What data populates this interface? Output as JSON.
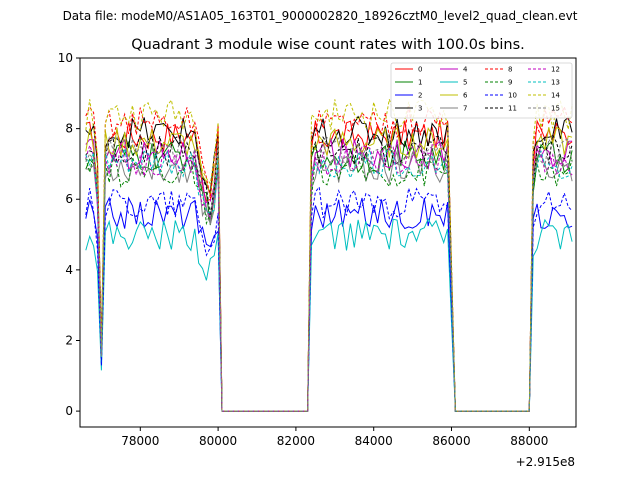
{
  "chart_data": {
    "type": "line",
    "suptitle": "Data file: modeM0/AS1A05_163T01_9000002820_18926cztM0_level2_quad_clean.evt",
    "title": "Quadrant 3 module wise count rates with 100.0s bins.",
    "xlabel": "",
    "ylabel": "",
    "x_offset_label": "+2.915e8",
    "xlim": [
      76450,
      89200
    ],
    "ylim": [
      -0.45,
      10
    ],
    "xticks": [
      78000,
      80000,
      82000,
      84000,
      86000,
      88000
    ],
    "xtick_labels": [
      "78000",
      "80000",
      "82000",
      "84000",
      "86000",
      "88000"
    ],
    "yticks": [
      0,
      2,
      4,
      6,
      8,
      10
    ],
    "ytick_labels": [
      "0",
      "2",
      "4",
      "6",
      "8",
      "10"
    ],
    "grid": false,
    "legend_position": "top-right",
    "bin_width": 100,
    "x_start": 76600,
    "x_end": 89100,
    "shape": {
      "on_segments": [
        [
          76600,
          79500
        ],
        [
          82400,
          86000
        ],
        [
          88100,
          89100
        ]
      ],
      "peaks": [
        [
          80150,
          1.03
        ]
      ],
      "ramps": [
        [
          79500,
          0.92
        ],
        [
          79600,
          0.86
        ],
        [
          79700,
          0.8
        ],
        [
          79800,
          0.78
        ],
        [
          79900,
          0.86
        ],
        [
          80000,
          0.98
        ]
      ],
      "dips": [
        [
          76900,
          0.84
        ],
        [
          77000,
          0.22
        ]
      ],
      "falls": [
        [
          80250,
          0.06
        ],
        [
          80350,
          0.0
        ]
      ],
      "rises": [
        [
          82350,
          0.62
        ],
        [
          82400,
          0.95
        ]
      ],
      "edge_dips": [
        [
          86000,
          0.5
        ],
        [
          86050,
          0.0
        ]
      ],
      "edge_rises": [
        [
          88050,
          0.5
        ],
        [
          88100,
          0.9
        ]
      ]
    },
    "series": [
      {
        "name": "0",
        "color": "#ff0000",
        "dash": "solid",
        "level": 7.8
      },
      {
        "name": "1",
        "color": "#008000",
        "dash": "solid",
        "level": 7.2
      },
      {
        "name": "2",
        "color": "#0000ff",
        "dash": "solid",
        "level": 5.6
      },
      {
        "name": "3",
        "color": "#000000",
        "dash": "solid",
        "level": 7.9
      },
      {
        "name": "4",
        "color": "#bf00bf",
        "dash": "solid",
        "level": 7.3
      },
      {
        "name": "5",
        "color": "#00bfbf",
        "dash": "solid",
        "level": 5.0
      },
      {
        "name": "6",
        "color": "#bfbf00",
        "dash": "solid",
        "level": 7.6
      },
      {
        "name": "7",
        "color": "#808080",
        "dash": "solid",
        "level": 6.9
      },
      {
        "name": "8",
        "color": "#ff0000",
        "dash": "dashed",
        "level": 8.2
      },
      {
        "name": "9",
        "color": "#008000",
        "dash": "dashed",
        "level": 6.8
      },
      {
        "name": "10",
        "color": "#0000ff",
        "dash": "dashed",
        "level": 5.9
      },
      {
        "name": "11",
        "color": "#000000",
        "dash": "dashed",
        "level": 7.4
      },
      {
        "name": "12",
        "color": "#bf00bf",
        "dash": "dashed",
        "level": 7.1
      },
      {
        "name": "13",
        "color": "#00bfbf",
        "dash": "dashed",
        "level": 7.0
      },
      {
        "name": "14",
        "color": "#bfbf00",
        "dash": "dashed",
        "level": 8.4
      },
      {
        "name": "15",
        "color": "#808080",
        "dash": "dashed",
        "level": 7.3
      }
    ]
  }
}
